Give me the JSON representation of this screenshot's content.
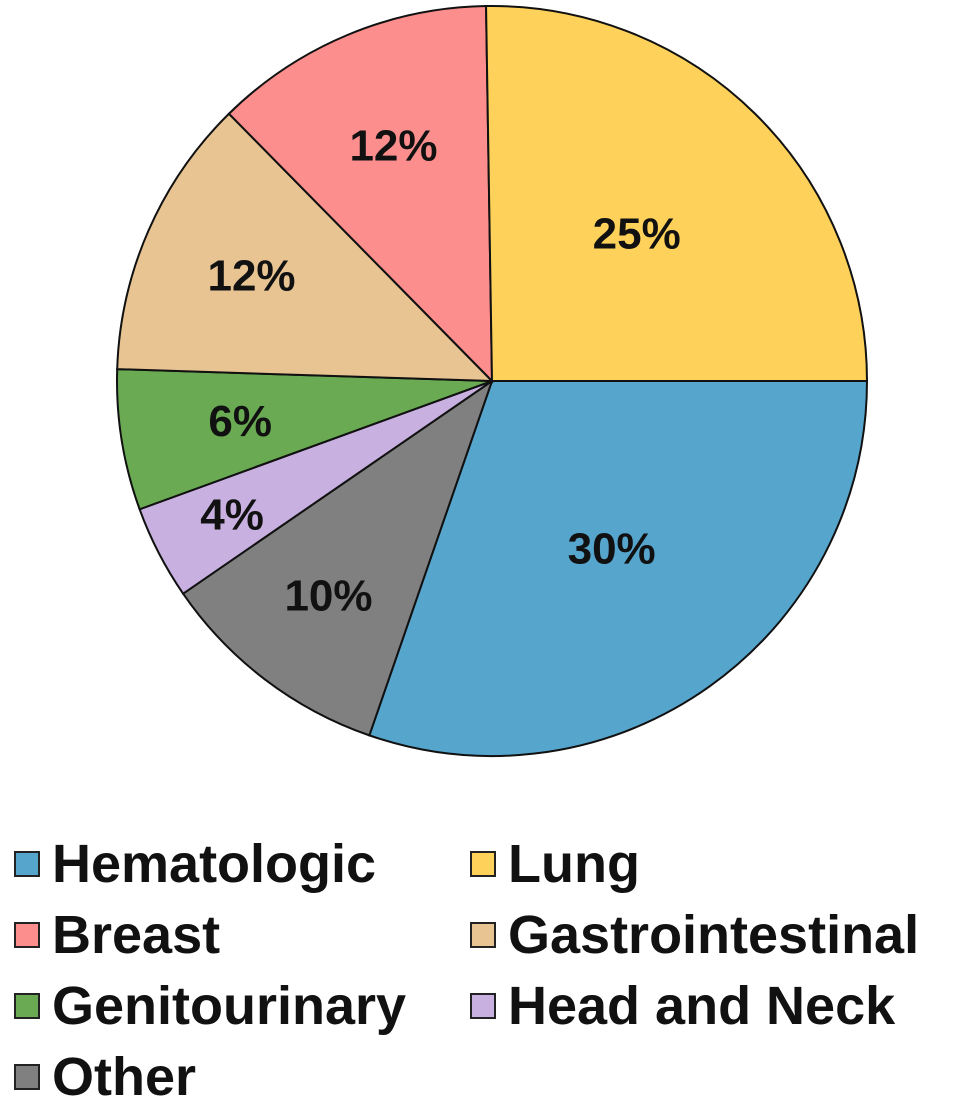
{
  "chart_data": {
    "type": "pie",
    "title": "",
    "start_angle_deg": 0,
    "direction": "clockwise",
    "legend_position": "bottom",
    "slices": [
      {
        "name": "Hematologic",
        "value": 30,
        "label": "30%",
        "color": "#56A5CC"
      },
      {
        "name": "Other",
        "value": 10,
        "label": "10%",
        "color": "#808080"
      },
      {
        "name": "Head and Neck",
        "value": 4,
        "label": "4%",
        "color": "#C8B1E0"
      },
      {
        "name": "Genitourinary",
        "value": 6,
        "label": "6%",
        "color": "#6AAA53"
      },
      {
        "name": "Gastrointestinal",
        "value": 12,
        "label": "12%",
        "color": "#E8C493"
      },
      {
        "name": "Breast",
        "value": 12,
        "label": "12%",
        "color": "#FC8F8E"
      },
      {
        "name": "Lung",
        "value": 25,
        "label": "25%",
        "color": "#FED25A"
      }
    ],
    "legend": [
      {
        "label": "Hematologic",
        "color": "#56A5CC"
      },
      {
        "label": "Lung",
        "color": "#FED25A"
      },
      {
        "label": "Breast",
        "color": "#FC8F8E"
      },
      {
        "label": "Gastrointestinal",
        "color": "#E8C493"
      },
      {
        "label": "Genitourinary",
        "color": "#6AAA53"
      },
      {
        "label": "Head and Neck",
        "color": "#C8B1E0"
      },
      {
        "label": "Other",
        "color": "#808080"
      }
    ]
  }
}
